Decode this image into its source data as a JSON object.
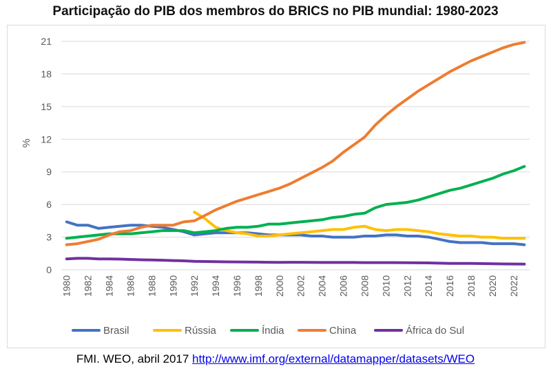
{
  "chart_data": {
    "type": "line",
    "title": "Participação do PIB dos membros do BRICS no PIB mundial: 1980-2023",
    "ylabel": "%",
    "xlabel": "",
    "xlim": [
      1980,
      2023
    ],
    "ylim": [
      0,
      21
    ],
    "yticks": [
      0,
      3,
      6,
      9,
      12,
      15,
      18,
      21
    ],
    "xticks": [
      1980,
      1982,
      1984,
      1986,
      1988,
      1990,
      1992,
      1994,
      1996,
      1998,
      2000,
      2002,
      2004,
      2006,
      2008,
      2010,
      2012,
      2014,
      2016,
      2018,
      2020,
      2022
    ],
    "grid": "horizontal",
    "legend": "bottom",
    "series": [
      {
        "name": "Brasil",
        "color": "#4472c4",
        "x": [
          1980,
          1981,
          1982,
          1983,
          1984,
          1985,
          1986,
          1987,
          1988,
          1989,
          1990,
          1991,
          1992,
          1993,
          1994,
          1995,
          1996,
          1997,
          1998,
          1999,
          2000,
          2001,
          2002,
          2003,
          2004,
          2005,
          2006,
          2007,
          2008,
          2009,
          2010,
          2011,
          2012,
          2013,
          2014,
          2015,
          2016,
          2017,
          2018,
          2019,
          2020,
          2021,
          2022,
          2023
        ],
        "values": [
          4.4,
          4.1,
          4.1,
          3.8,
          3.9,
          4.0,
          4.1,
          4.1,
          4.0,
          3.9,
          3.7,
          3.5,
          3.2,
          3.3,
          3.4,
          3.4,
          3.4,
          3.4,
          3.3,
          3.2,
          3.2,
          3.2,
          3.2,
          3.1,
          3.1,
          3.0,
          3.0,
          3.0,
          3.1,
          3.1,
          3.2,
          3.2,
          3.1,
          3.1,
          3.0,
          2.8,
          2.6,
          2.5,
          2.5,
          2.5,
          2.4,
          2.4,
          2.4,
          2.3
        ]
      },
      {
        "name": "Rússia",
        "color": "#ffc000",
        "x": [
          1992,
          1993,
          1994,
          1995,
          1996,
          1997,
          1998,
          1999,
          2000,
          2001,
          2002,
          2003,
          2004,
          2005,
          2006,
          2007,
          2008,
          2009,
          2010,
          2011,
          2012,
          2013,
          2014,
          2015,
          2016,
          2017,
          2018,
          2019,
          2020,
          2021,
          2022,
          2023
        ],
        "values": [
          5.3,
          4.7,
          3.9,
          3.6,
          3.4,
          3.3,
          3.1,
          3.1,
          3.2,
          3.3,
          3.4,
          3.5,
          3.6,
          3.7,
          3.7,
          3.9,
          4.0,
          3.7,
          3.6,
          3.7,
          3.7,
          3.6,
          3.5,
          3.3,
          3.2,
          3.1,
          3.1,
          3.0,
          3.0,
          2.9,
          2.9,
          2.9
        ]
      },
      {
        "name": "Índia",
        "color": "#00b050",
        "x": [
          1980,
          1981,
          1982,
          1983,
          1984,
          1985,
          1986,
          1987,
          1988,
          1989,
          1990,
          1991,
          1992,
          1993,
          1994,
          1995,
          1996,
          1997,
          1998,
          1999,
          2000,
          2001,
          2002,
          2003,
          2004,
          2005,
          2006,
          2007,
          2008,
          2009,
          2010,
          2011,
          2012,
          2013,
          2014,
          2015,
          2016,
          2017,
          2018,
          2019,
          2020,
          2021,
          2022,
          2023
        ],
        "values": [
          2.9,
          3.0,
          3.1,
          3.2,
          3.3,
          3.3,
          3.3,
          3.4,
          3.5,
          3.6,
          3.6,
          3.6,
          3.4,
          3.5,
          3.6,
          3.8,
          3.9,
          3.9,
          4.0,
          4.2,
          4.2,
          4.3,
          4.4,
          4.5,
          4.6,
          4.8,
          4.9,
          5.1,
          5.2,
          5.7,
          6.0,
          6.1,
          6.2,
          6.4,
          6.7,
          7.0,
          7.3,
          7.5,
          7.8,
          8.1,
          8.4,
          8.8,
          9.1,
          9.5
        ]
      },
      {
        "name": "China",
        "color": "#ed7d31",
        "x": [
          1980,
          1981,
          1982,
          1983,
          1984,
          1985,
          1986,
          1987,
          1988,
          1989,
          1990,
          1991,
          1992,
          1993,
          1994,
          1995,
          1996,
          1997,
          1998,
          1999,
          2000,
          2001,
          2002,
          2003,
          2004,
          2005,
          2006,
          2007,
          2008,
          2009,
          2010,
          2011,
          2012,
          2013,
          2014,
          2015,
          2016,
          2017,
          2018,
          2019,
          2020,
          2021,
          2022,
          2023
        ],
        "values": [
          2.3,
          2.4,
          2.6,
          2.8,
          3.2,
          3.5,
          3.6,
          3.9,
          4.1,
          4.1,
          4.1,
          4.4,
          4.5,
          5.0,
          5.5,
          5.9,
          6.3,
          6.6,
          6.9,
          7.2,
          7.5,
          7.9,
          8.4,
          8.9,
          9.4,
          10.0,
          10.8,
          11.5,
          12.2,
          13.3,
          14.2,
          15.0,
          15.7,
          16.4,
          17.0,
          17.6,
          18.2,
          18.7,
          19.2,
          19.6,
          20.0,
          20.4,
          20.7,
          20.9
        ]
      },
      {
        "name": "África do Sul",
        "color": "#7030a0",
        "x": [
          1980,
          1981,
          1982,
          1983,
          1984,
          1985,
          1986,
          1987,
          1988,
          1989,
          1990,
          1991,
          1992,
          1993,
          1994,
          1995,
          1996,
          1997,
          1998,
          1999,
          2000,
          2001,
          2002,
          2003,
          2004,
          2005,
          2006,
          2007,
          2008,
          2009,
          2010,
          2011,
          2012,
          2013,
          2014,
          2015,
          2016,
          2017,
          2018,
          2019,
          2020,
          2021,
          2022,
          2023
        ],
        "values": [
          1.0,
          1.05,
          1.05,
          1.0,
          1.0,
          0.98,
          0.95,
          0.92,
          0.9,
          0.88,
          0.85,
          0.82,
          0.78,
          0.76,
          0.74,
          0.73,
          0.72,
          0.71,
          0.7,
          0.69,
          0.68,
          0.69,
          0.69,
          0.68,
          0.67,
          0.67,
          0.67,
          0.67,
          0.66,
          0.66,
          0.66,
          0.66,
          0.65,
          0.64,
          0.63,
          0.61,
          0.58,
          0.58,
          0.58,
          0.57,
          0.55,
          0.54,
          0.53,
          0.52
        ]
      }
    ]
  },
  "source": {
    "prefix": "FMI. WEO, abril 2017 ",
    "link_text": "http://www.imf.org/external/datamapper/datasets/WEO"
  }
}
